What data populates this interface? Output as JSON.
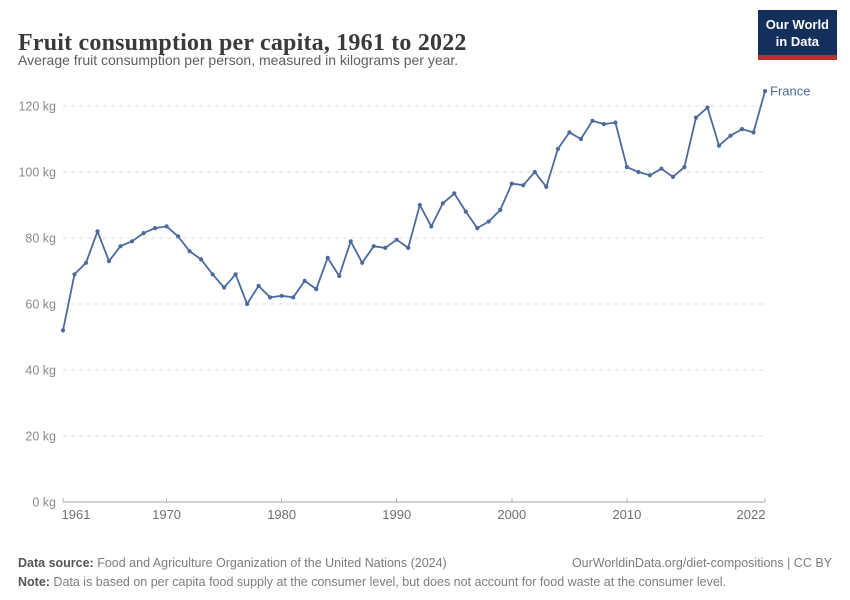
{
  "header": {
    "title": "Fruit consumption per capita, 1961 to 2022",
    "subtitle": "Average fruit consumption per person, measured in kilograms per year.",
    "logo": {
      "line1": "Our World",
      "line2": "in Data",
      "bg_color": "#12305b",
      "bar_color": "#b5332b"
    }
  },
  "chart_data": {
    "type": "line",
    "title": "Fruit consumption per capita, 1961 to 2022",
    "xlabel": "",
    "ylabel": "kilograms per year",
    "xlim": [
      1961,
      2022
    ],
    "ylim": [
      0,
      120
    ],
    "x_ticks": [
      1961,
      1970,
      1980,
      1990,
      2000,
      2010,
      2022
    ],
    "y_ticks": [
      0,
      20,
      40,
      60,
      80,
      100,
      120
    ],
    "y_tick_suffix": " kg",
    "grid": "horizontal-dashed",
    "legend_position": "end-of-line-label",
    "series": [
      {
        "name": "France",
        "color": "#4c6a9c",
        "x": [
          1961,
          1962,
          1963,
          1964,
          1965,
          1966,
          1967,
          1968,
          1969,
          1970,
          1971,
          1972,
          1973,
          1974,
          1975,
          1976,
          1977,
          1978,
          1979,
          1980,
          1981,
          1982,
          1983,
          1984,
          1985,
          1986,
          1987,
          1988,
          1989,
          1990,
          1991,
          1992,
          1993,
          1994,
          1995,
          1996,
          1997,
          1998,
          1999,
          2000,
          2001,
          2002,
          2003,
          2004,
          2005,
          2006,
          2007,
          2008,
          2009,
          2010,
          2011,
          2012,
          2013,
          2014,
          2015,
          2016,
          2017,
          2018,
          2019,
          2020,
          2021,
          2022
        ],
        "values": [
          52,
          69,
          72.5,
          82,
          73,
          77.5,
          79,
          81.5,
          83,
          83.5,
          80.5,
          76,
          73.5,
          69,
          65,
          69,
          60,
          65.5,
          62,
          62.5,
          62,
          67,
          64.5,
          74,
          68.5,
          79,
          72.5,
          77.5,
          77,
          79.5,
          77,
          90,
          83.5,
          90.5,
          93.5,
          88,
          83,
          85,
          88.5,
          96.5,
          96,
          100,
          95.5,
          107,
          112,
          110,
          115.5,
          114.5,
          115,
          101.5,
          100,
          99,
          101,
          98.5,
          101.5,
          116.5,
          119.5,
          108,
          111,
          113,
          112,
          124.5
        ]
      }
    ]
  },
  "footer": {
    "source_label": "Data source:",
    "source_text": " Food and Agriculture Organization of the United Nations (2024)",
    "credit": "OurWorldinData.org/diet-compositions | CC BY",
    "note_label": "Note:",
    "note_text": " Data is based on per capita food supply at the consumer level, but does not account for food waste at the consumer level."
  }
}
